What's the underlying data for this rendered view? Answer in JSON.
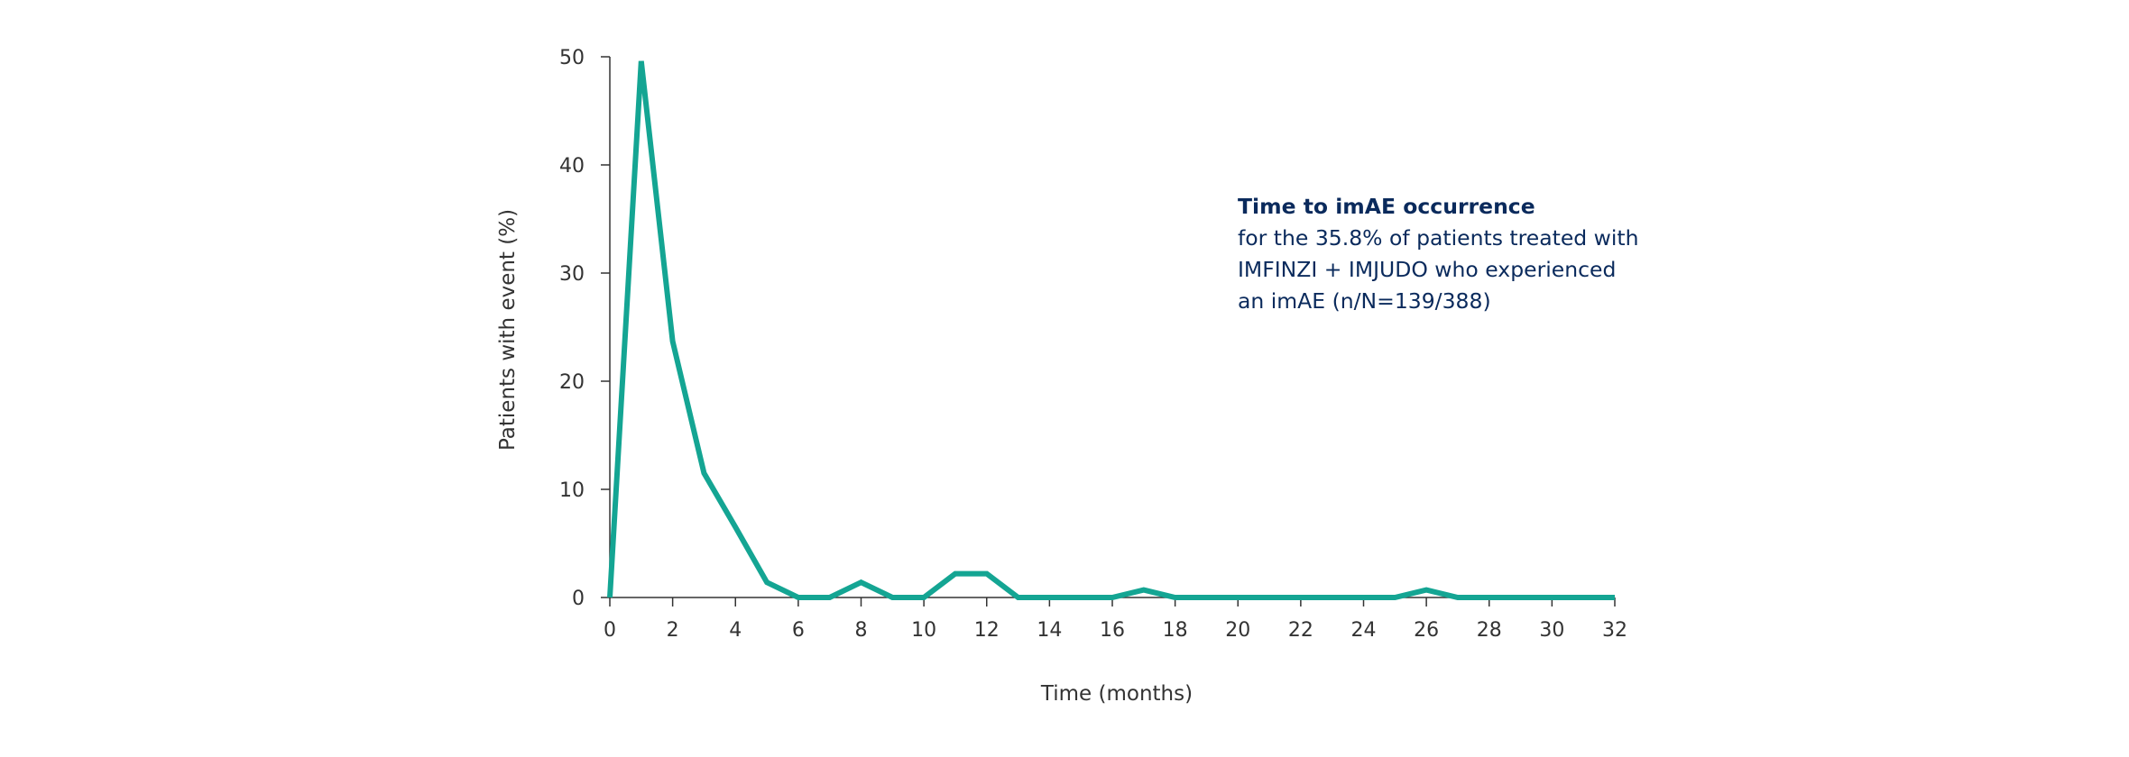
{
  "chart_data": {
    "type": "line",
    "title": "",
    "xlabel": "Time (months)",
    "ylabel": "Patients with event (%)",
    "xlim": [
      0,
      32
    ],
    "ylim": [
      0,
      50
    ],
    "xticks": [
      0,
      2,
      4,
      6,
      8,
      10,
      12,
      14,
      16,
      18,
      20,
      22,
      24,
      26,
      28,
      30,
      32
    ],
    "yticks": [
      0,
      10,
      20,
      30,
      40,
      50
    ],
    "grid": false,
    "legend": "none",
    "series": [
      {
        "color": "#14a593",
        "x": [
          0,
          1,
          2,
          3,
          4,
          5,
          6,
          7,
          8,
          9,
          10,
          11,
          12,
          13,
          14,
          15,
          16,
          17,
          18,
          19,
          20,
          21,
          22,
          23,
          24,
          25,
          26,
          27,
          28,
          29,
          30,
          31,
          32
        ],
        "y": [
          0,
          49.6,
          23.7,
          11.5,
          6.5,
          1.4,
          0,
          0,
          1.4,
          0,
          0,
          2.2,
          2.2,
          0,
          0,
          0,
          0,
          0.7,
          0,
          0,
          0,
          0,
          0,
          0,
          0,
          0,
          0.7,
          0,
          0,
          0,
          0,
          0,
          0
        ]
      }
    ],
    "annotation": {
      "title": "Time to imAE occurrence",
      "lines": [
        "for the 35.8% of patients treated with",
        "IMFINZI + IMJUDO who experienced",
        "an imAE (n/N=139/388)"
      ]
    }
  },
  "colors": {
    "series": "#14a593",
    "axis": "#333333",
    "annotation": "#0a2a5c"
  }
}
